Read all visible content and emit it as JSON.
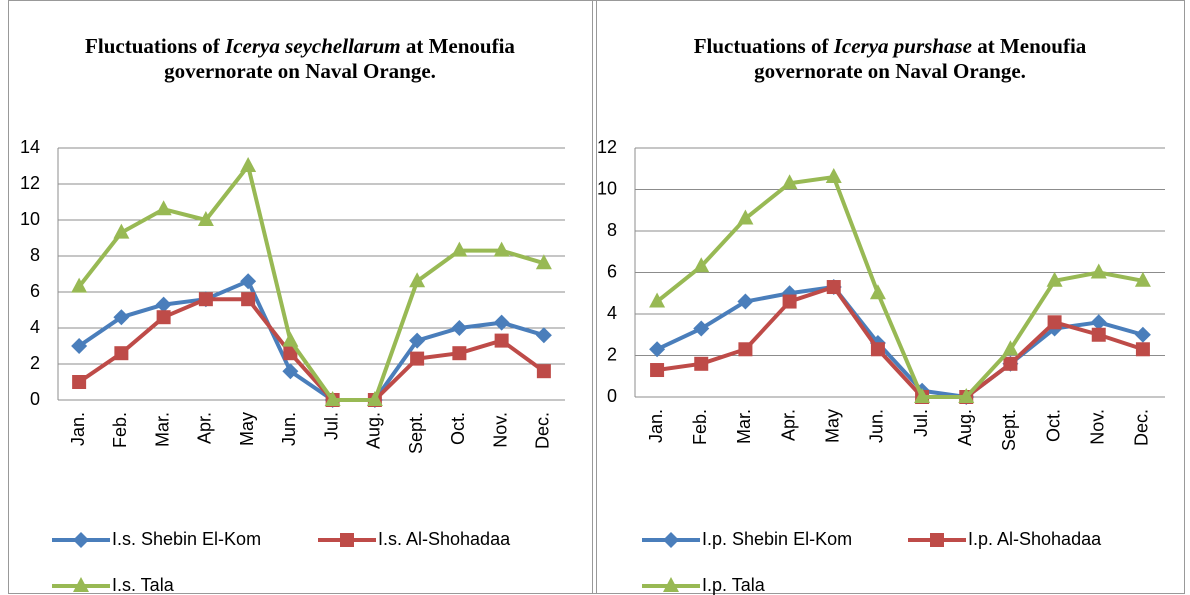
{
  "chart_data": [
    {
      "type": "line",
      "title": {
        "before": "Fluctuations of ",
        "italic": "Icerya seychellarum",
        "after": " at Menoufia governorate on Naval Orange."
      },
      "categories": [
        "Jan.",
        "Feb.",
        "Mar.",
        "Apr.",
        "May",
        "Jun.",
        "Jul.",
        "Aug.",
        "Sept.",
        "Oct.",
        "Nov.",
        "Dec."
      ],
      "ylim": [
        0,
        14
      ],
      "yticks": [
        0,
        2,
        4,
        6,
        8,
        10,
        12,
        14
      ],
      "grid": true,
      "series": [
        {
          "name": "I.s. Shebin El-Kom",
          "color": "#4a7ebb",
          "marker": "diamond",
          "values": [
            3,
            4.6,
            5.3,
            5.6,
            6.6,
            1.6,
            0,
            0,
            3.3,
            4,
            4.3,
            3.6
          ]
        },
        {
          "name": "I.s. Al-Shohadaa",
          "color": "#be4b48",
          "marker": "square",
          "values": [
            1,
            2.6,
            4.6,
            5.6,
            5.6,
            2.6,
            0,
            0,
            2.3,
            2.6,
            3.3,
            1.6
          ]
        },
        {
          "name": "I.s. Tala",
          "color": "#98b954",
          "marker": "triangle",
          "values": [
            6.3,
            9.3,
            10.6,
            10,
            13,
            3.3,
            0,
            0,
            6.6,
            8.3,
            8.3,
            7.6
          ]
        }
      ]
    },
    {
      "type": "line",
      "title": {
        "before": "Fluctuations of ",
        "italic": "Icerya purshase",
        "after": " at Menoufia governorate on Naval Orange."
      },
      "categories": [
        "Jan.",
        "Feb.",
        "Mar.",
        "Apr.",
        "May",
        "Jun.",
        "Jul.",
        "Aug.",
        "Sept.",
        "Oct.",
        "Nov.",
        "Dec."
      ],
      "ylim": [
        0,
        12
      ],
      "yticks": [
        0,
        2,
        4,
        6,
        8,
        10,
        12
      ],
      "grid": true,
      "series": [
        {
          "name": "I.p. Shebin El-Kom",
          "color": "#4a7ebb",
          "marker": "diamond",
          "values": [
            2.3,
            3.3,
            4.6,
            5,
            5.3,
            2.6,
            0.3,
            0,
            1.6,
            3.3,
            3.6,
            3
          ]
        },
        {
          "name": "I.p. Al-Shohadaa",
          "color": "#be4b48",
          "marker": "square",
          "values": [
            1.3,
            1.6,
            2.3,
            4.6,
            5.3,
            2.3,
            0,
            0,
            1.6,
            3.6,
            3,
            2.3
          ]
        },
        {
          "name": "I.p. Tala",
          "color": "#98b954",
          "marker": "triangle",
          "values": [
            4.6,
            6.3,
            8.6,
            10.3,
            10.6,
            5,
            0,
            0,
            2.3,
            5.6,
            6,
            5.6
          ]
        }
      ]
    }
  ]
}
